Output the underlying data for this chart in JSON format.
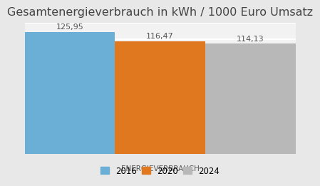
{
  "title": "Gesamtenergieverbrauch in kWh / 1000 Euro Umsatz",
  "xlabel": "ENERGIEVERBRAUCH",
  "categories": [
    "2016",
    "2020",
    "2024"
  ],
  "values": [
    125.95,
    116.47,
    114.13
  ],
  "bar_colors": [
    "#6baed6",
    "#e07820",
    "#b8b8b8"
  ],
  "label_texts": [
    "125,95",
    "116,47",
    "114,13"
  ],
  "label_color": "#555555",
  "ylim": [
    0,
    135
  ],
  "bar_width": 1.0,
  "bar_positions": [
    0.5,
    1.5,
    2.5
  ],
  "background_color": "#e8e8e8",
  "plot_background_color": "#f2f2f2",
  "title_fontsize": 11.5,
  "xlabel_fontsize": 7.5,
  "legend_fontsize": 8.5,
  "value_fontsize": 8,
  "grid_color": "#ffffff",
  "label_color_dark": "#555555",
  "title_color": "#444444"
}
